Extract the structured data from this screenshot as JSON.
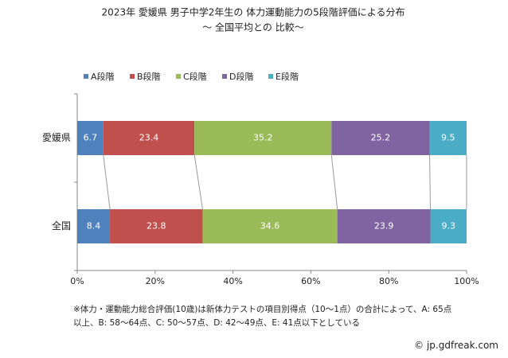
{
  "chart_data": {
    "type": "stacked-barh",
    "title": "2023年 愛媛県  男子中学2年生の 体力運動能力の5段階評価による分布",
    "subtitle": "〜  全国平均との 比較〜",
    "categories": [
      "愛媛県",
      "全国"
    ],
    "series": [
      {
        "name": "A段階",
        "color": "#4f81bd",
        "values": [
          6.7,
          8.4
        ]
      },
      {
        "name": "B段階",
        "color": "#c0504d",
        "values": [
          23.4,
          23.8
        ]
      },
      {
        "name": "C段階",
        "color": "#9bbb59",
        "values": [
          35.2,
          34.6
        ]
      },
      {
        "name": "D段階",
        "color": "#8064a2",
        "values": [
          25.2,
          23.9
        ]
      },
      {
        "name": "E段階",
        "color": "#4bacc6",
        "values": [
          9.5,
          9.3
        ]
      }
    ],
    "xlim": [
      0,
      100
    ],
    "xticks": [
      {
        "value": 0,
        "label": "0%"
      },
      {
        "value": 20,
        "label": "20%"
      },
      {
        "value": 40,
        "label": "40%"
      },
      {
        "value": 60,
        "label": "60%"
      },
      {
        "value": 80,
        "label": "80%"
      },
      {
        "value": 100,
        "label": "100%"
      }
    ],
    "legend": "top",
    "note": "※体力・運動能力総合評価(10歳)は新体力テストの項目別得点（10〜1点）の合計によって、A: 65点以上、B: 58〜64点、C: 50〜57点、D: 42〜49点、E: 41点以下としている",
    "credit": "© jp.gdfreak.com"
  }
}
